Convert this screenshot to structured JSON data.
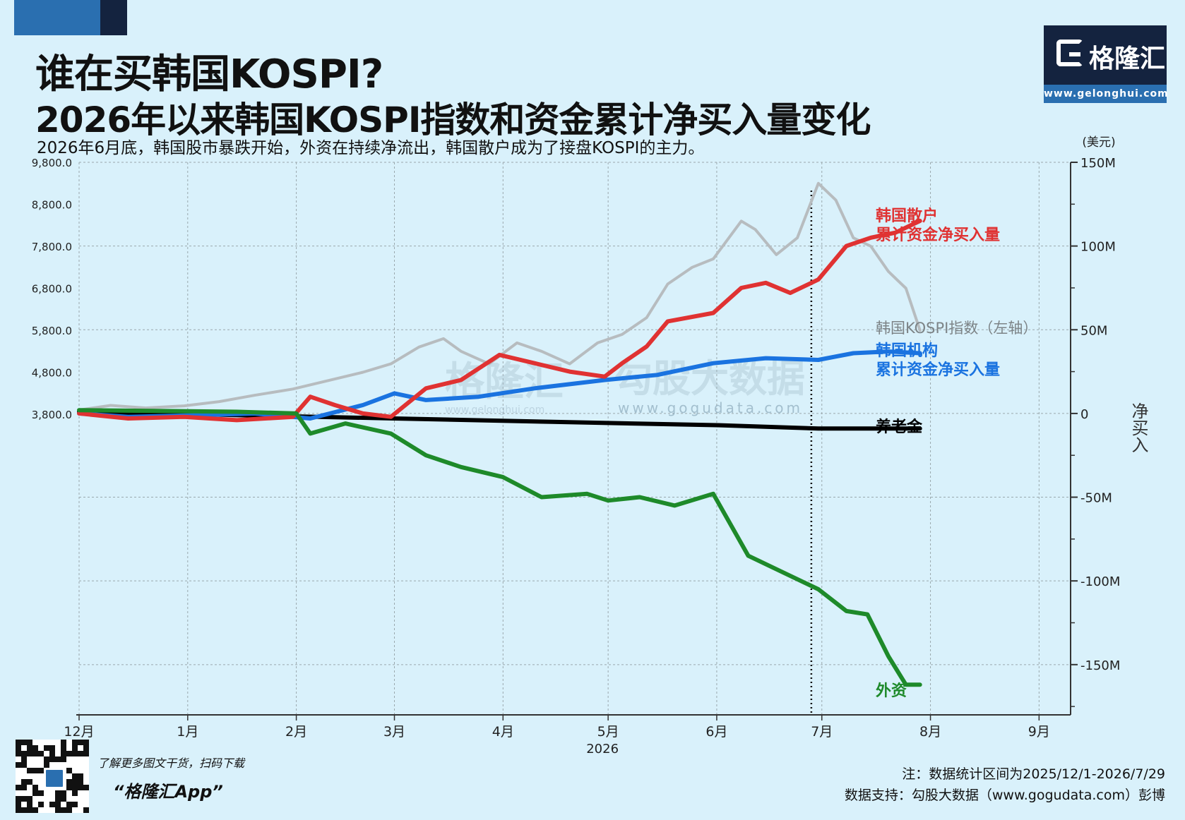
{
  "header": {
    "title_line1": "谁在买韩国KOSPI?",
    "title_line2": "2026年以来韩国KOSPI指数和资金累计净买入量变化",
    "subtitle": "2026年6月底，韩国股市暴跌开始，外资在持续净流出，韩国散户成为了接盘KOSPI的主力。"
  },
  "logo": {
    "name": "格隆汇",
    "url": "www.gelonghui.com"
  },
  "watermarks": [
    "格隆汇",
    "www.gelonghui.com",
    "勾股大数据",
    "www.gogudata.com"
  ],
  "colors": {
    "background": "#d9f1fb",
    "retail": "#e03232",
    "institution": "#1a73e0",
    "pension": "#000000",
    "foreign": "#1e8a2a",
    "kospi": "#b7bcbf"
  },
  "chart_data": {
    "type": "line",
    "x_axis": {
      "tick_labels": [
        "12月",
        "1月",
        "2月",
        "3月",
        "4月",
        "5月",
        "6月",
        "7月",
        "8月",
        "9月"
      ],
      "tick_dates": [
        "2025-12-01",
        "2026-01-01",
        "2026-02-01",
        "2026-03-01",
        "2026-04-01",
        "2026-05-01",
        "2026-06-01",
        "2026-07-01",
        "2026-08-01",
        "2026-09-01"
      ],
      "year_label": "2026",
      "range": [
        "2025-12-01",
        "2026-09-10"
      ]
    },
    "left_axis": {
      "ticks": [
        "9,800.0",
        "8,800.0",
        "7,800.0",
        "6,800.0",
        "5,800.0",
        "4,800.0",
        "3,800.0"
      ],
      "range": [
        3800,
        9800
      ]
    },
    "right_axis": {
      "unit": "(美元)",
      "title": "净买入",
      "ticks": [
        "150M",
        "100M",
        "50M",
        "0",
        "-50M",
        "-100M",
        "-150M"
      ],
      "range": [
        -180,
        150
      ]
    },
    "vertical_marker_date": "2026-06-28",
    "series": [
      {
        "key": "kospi",
        "name": "韩国KOSPI指数（左轴）",
        "axis": "left",
        "points": [
          [
            "2025-12-01",
            3900
          ],
          [
            "2025-12-10",
            4010
          ],
          [
            "2025-12-20",
            3950
          ],
          [
            "2025-12-31",
            4000
          ],
          [
            "2026-01-10",
            4100
          ],
          [
            "2026-01-20",
            4250
          ],
          [
            "2026-01-31",
            4400
          ],
          [
            "2026-02-10",
            4600
          ],
          [
            "2026-02-20",
            4800
          ],
          [
            "2026-02-28",
            5000
          ],
          [
            "2026-03-08",
            5400
          ],
          [
            "2026-03-15",
            5600
          ],
          [
            "2026-03-20",
            5300
          ],
          [
            "2026-03-28",
            5000
          ],
          [
            "2026-04-05",
            5500
          ],
          [
            "2026-04-12",
            5300
          ],
          [
            "2026-04-20",
            5000
          ],
          [
            "2026-04-28",
            5500
          ],
          [
            "2026-05-05",
            5700
          ],
          [
            "2026-05-12",
            6100
          ],
          [
            "2026-05-18",
            6900
          ],
          [
            "2026-05-25",
            7300
          ],
          [
            "2026-05-31",
            7500
          ],
          [
            "2026-06-08",
            8400
          ],
          [
            "2026-06-12",
            8200
          ],
          [
            "2026-06-18",
            7600
          ],
          [
            "2026-06-24",
            8000
          ],
          [
            "2026-06-30",
            9300
          ],
          [
            "2026-07-05",
            8900
          ],
          [
            "2026-07-10",
            8000
          ],
          [
            "2026-07-15",
            7800
          ],
          [
            "2026-07-20",
            7200
          ],
          [
            "2026-07-25",
            6800
          ],
          [
            "2026-07-29",
            5800
          ]
        ]
      },
      {
        "key": "retail",
        "name": "韩国散户累计资金净买入量",
        "label_line1": "韩国散户",
        "label_line2": "累计资金净买入量",
        "axis": "right",
        "points": [
          [
            "2025-12-01",
            0
          ],
          [
            "2025-12-15",
            -3
          ],
          [
            "2025-12-31",
            -2
          ],
          [
            "2026-01-15",
            -4
          ],
          [
            "2026-01-31",
            -2
          ],
          [
            "2026-02-05",
            10
          ],
          [
            "2026-02-12",
            5
          ],
          [
            "2026-02-20",
            0
          ],
          [
            "2026-02-28",
            -2
          ],
          [
            "2026-03-10",
            15
          ],
          [
            "2026-03-20",
            20
          ],
          [
            "2026-03-31",
            35
          ],
          [
            "2026-04-10",
            30
          ],
          [
            "2026-04-20",
            25
          ],
          [
            "2026-04-30",
            22
          ],
          [
            "2026-05-05",
            30
          ],
          [
            "2026-05-12",
            40
          ],
          [
            "2026-05-18",
            55
          ],
          [
            "2026-05-31",
            60
          ],
          [
            "2026-06-08",
            75
          ],
          [
            "2026-06-15",
            78
          ],
          [
            "2026-06-22",
            72
          ],
          [
            "2026-06-30",
            80
          ],
          [
            "2026-07-08",
            100
          ],
          [
            "2026-07-15",
            105
          ],
          [
            "2026-07-22",
            108
          ],
          [
            "2026-07-29",
            115
          ]
        ]
      },
      {
        "key": "institution",
        "name": "韩国机构累计资金净买入量",
        "label_line1": "韩国机构",
        "label_line2": "累计资金净买入量",
        "axis": "right",
        "points": [
          [
            "2025-12-01",
            0
          ],
          [
            "2025-12-15",
            -2
          ],
          [
            "2026-01-05",
            -1
          ],
          [
            "2026-01-20",
            0
          ],
          [
            "2026-02-05",
            -3
          ],
          [
            "2026-02-20",
            5
          ],
          [
            "2026-03-01",
            12
          ],
          [
            "2026-03-10",
            8
          ],
          [
            "2026-03-25",
            10
          ],
          [
            "2026-04-10",
            15
          ],
          [
            "2026-04-30",
            20
          ],
          [
            "2026-05-15",
            23
          ],
          [
            "2026-05-31",
            30
          ],
          [
            "2026-06-15",
            33
          ],
          [
            "2026-06-30",
            32
          ],
          [
            "2026-07-10",
            36
          ],
          [
            "2026-07-20",
            37
          ],
          [
            "2026-07-29",
            36
          ]
        ]
      },
      {
        "key": "pension",
        "name": "养老金",
        "axis": "right",
        "points": [
          [
            "2025-12-01",
            1
          ],
          [
            "2026-01-15",
            -1
          ],
          [
            "2026-03-01",
            -3
          ],
          [
            "2026-04-15",
            -5
          ],
          [
            "2026-06-01",
            -7
          ],
          [
            "2026-06-30",
            -9
          ],
          [
            "2026-07-29",
            -9
          ]
        ]
      },
      {
        "key": "foreign",
        "name": "外资",
        "axis": "right",
        "points": [
          [
            "2025-12-01",
            2
          ],
          [
            "2026-01-15",
            1
          ],
          [
            "2026-02-01",
            0
          ],
          [
            "2026-02-05",
            -12
          ],
          [
            "2026-02-15",
            -6
          ],
          [
            "2026-02-28",
            -12
          ],
          [
            "2026-03-10",
            -25
          ],
          [
            "2026-03-20",
            -32
          ],
          [
            "2026-04-01",
            -38
          ],
          [
            "2026-04-12",
            -50
          ],
          [
            "2026-04-25",
            -48
          ],
          [
            "2026-05-01",
            -52
          ],
          [
            "2026-05-10",
            -50
          ],
          [
            "2026-05-20",
            -55
          ],
          [
            "2026-05-31",
            -48
          ],
          [
            "2026-06-10",
            -85
          ],
          [
            "2026-06-20",
            -95
          ],
          [
            "2026-06-30",
            -105
          ],
          [
            "2026-07-08",
            -118
          ],
          [
            "2026-07-14",
            -120
          ],
          [
            "2026-07-20",
            -145
          ],
          [
            "2026-07-25",
            -162
          ],
          [
            "2026-07-29",
            -162
          ]
        ]
      }
    ]
  },
  "footer": {
    "promo": "了解更多图文干货，扫码下载",
    "app": "“格隆汇App”",
    "note": "注：数据统计区间为2025/12/1-2026/7/29",
    "source": "数据支持：勾股大数据（www.gogudata.com）彭博"
  }
}
